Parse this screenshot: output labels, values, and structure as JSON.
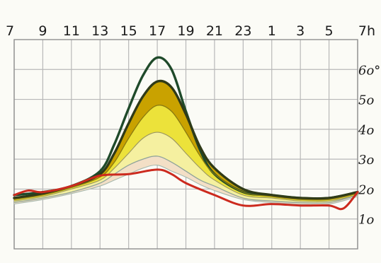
{
  "chart_data": {
    "type": "line",
    "title": "",
    "xlabel": "",
    "ylabel": "",
    "x_ticks": [
      "7",
      "9",
      "11",
      "13",
      "15",
      "17",
      "19",
      "21",
      "23",
      "1",
      "3",
      "5",
      "7h"
    ],
    "y_ticks": [
      "1o",
      "2o",
      "3o",
      "4o",
      "5o",
      "6o°"
    ],
    "y_tick_values": [
      10,
      20,
      30,
      40,
      50,
      60
    ],
    "xlim": [
      7,
      31
    ],
    "ylim": [
      0,
      70
    ],
    "grid": true,
    "colors": {
      "max_line": "#1f4a2a",
      "upper_band_edge": "#2f3a18",
      "dark_band": "#c9a200",
      "yellow_band": "#ece23a",
      "pale_band": "#f5f0a0",
      "peach_band": "#f3dfc6",
      "min_line": "#cc2a1e",
      "grid": "#b8b8b8"
    },
    "series": [
      {
        "key": "max",
        "x": [
          7,
          9,
          11,
          13,
          14,
          15,
          16,
          17,
          18,
          19,
          20,
          21,
          23,
          25,
          27,
          29,
          31
        ],
        "values": [
          18,
          19,
          21,
          26,
          35,
          47,
          58,
          64,
          60,
          46,
          33,
          25,
          19,
          18,
          17,
          17,
          19
        ]
      },
      {
        "key": "upper",
        "x": [
          7,
          9,
          11,
          13,
          14,
          15,
          16,
          17,
          18,
          19,
          20,
          21,
          23,
          25,
          27,
          29,
          31
        ],
        "values": [
          17,
          18.5,
          21,
          25,
          32,
          42,
          51,
          56,
          54,
          45,
          34,
          27,
          20,
          18,
          17,
          17,
          19
        ]
      },
      {
        "key": "mid_high",
        "x": [
          7,
          9,
          11,
          13,
          14,
          15,
          16,
          17,
          18,
          19,
          20,
          21,
          23,
          25,
          27,
          29,
          31
        ],
        "values": [
          16.5,
          18,
          20.5,
          24,
          29,
          37,
          44,
          48,
          46,
          39,
          31,
          25,
          19,
          17.5,
          16.5,
          16.5,
          18.5
        ]
      },
      {
        "key": "mid",
        "x": [
          7,
          9,
          11,
          13,
          14,
          15,
          16,
          17,
          18,
          19,
          20,
          21,
          23,
          25,
          27,
          29,
          31
        ],
        "values": [
          16,
          17.5,
          20,
          23,
          27,
          32,
          37,
          39,
          37,
          32,
          27,
          23,
          18,
          17,
          16,
          16,
          18
        ]
      },
      {
        "key": "low",
        "x": [
          7,
          9,
          11,
          13,
          14,
          15,
          16,
          17,
          18,
          19,
          20,
          21,
          23,
          25,
          27,
          29,
          31
        ],
        "values": [
          15.5,
          17,
          19,
          22,
          25,
          28,
          30,
          31,
          29,
          26,
          23,
          21,
          17,
          16,
          15.5,
          15.5,
          18
        ]
      },
      {
        "key": "lowest",
        "x": [
          7,
          9,
          11,
          13,
          14,
          15,
          16,
          17,
          18,
          19,
          20,
          21,
          23,
          25,
          27,
          29,
          31
        ],
        "values": [
          15,
          16.5,
          18.5,
          21,
          23,
          25,
          27,
          28,
          26,
          24,
          21.5,
          19.5,
          16.5,
          15.5,
          15,
          15,
          17.5
        ]
      },
      {
        "key": "min",
        "x": [
          7,
          8,
          9,
          11,
          13,
          15,
          17,
          18,
          19,
          21,
          23,
          25,
          27,
          29,
          30,
          31
        ],
        "values": [
          18,
          19.5,
          19,
          21,
          24.5,
          25,
          26.5,
          25,
          22,
          18,
          14.5,
          15,
          14.5,
          14.5,
          13.5,
          19
        ]
      }
    ]
  }
}
